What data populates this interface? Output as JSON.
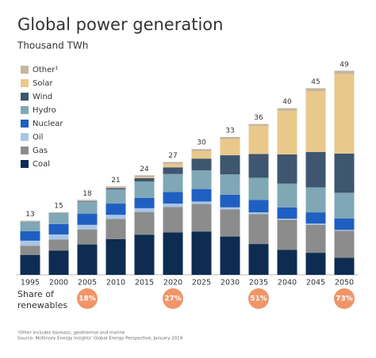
{
  "chart_data": {
    "type": "stacked-bar",
    "title": "Global power generation",
    "subtitle": "Thousand TWh",
    "categories": [
      "1995",
      "2000",
      "2005",
      "2010",
      "2015",
      "2020",
      "2025",
      "2030",
      "2035",
      "2040",
      "2045",
      "2050"
    ],
    "series": [
      {
        "name": "Coal",
        "color": "#0e2c52",
        "values": [
          4.8,
          5.8,
          7.3,
          8.6,
          9.6,
          10.2,
          10.4,
          9.2,
          7.4,
          6.0,
          5.3,
          4.1
        ]
      },
      {
        "name": "Gas",
        "color": "#8c8c8c",
        "values": [
          2.2,
          2.7,
          3.6,
          4.8,
          5.5,
          6.1,
          6.6,
          6.5,
          7.2,
          7.2,
          6.7,
          6.5
        ]
      },
      {
        "name": "Oil",
        "color": "#a9c6e8",
        "values": [
          1.2,
          1.2,
          1.1,
          1.0,
          0.9,
          0.8,
          0.6,
          0.5,
          0.4,
          0.3,
          0.3,
          0.2
        ]
      },
      {
        "name": "Nuclear",
        "color": "#1f5fc1",
        "values": [
          2.3,
          2.5,
          2.7,
          2.7,
          2.5,
          2.8,
          3.0,
          3.0,
          3.0,
          2.7,
          2.7,
          2.7
        ]
      },
      {
        "name": "Hydro",
        "color": "#80a7b6",
        "values": [
          2.3,
          2.6,
          2.9,
          3.4,
          3.9,
          4.3,
          4.5,
          4.9,
          5.3,
          5.7,
          6.0,
          6.2
        ]
      },
      {
        "name": "Wind",
        "color": "#3e566f",
        "values": [
          0,
          0.03,
          0.1,
          0.3,
          0.8,
          1.6,
          2.8,
          4.6,
          5.7,
          7.0,
          8.5,
          9.4
        ]
      },
      {
        "name": "Solar",
        "color": "#e9c98b",
        "values": [
          0,
          0,
          0,
          0.03,
          0.2,
          0.8,
          1.8,
          3.9,
          6.7,
          10.5,
          14.6,
          19.1
        ]
      },
      {
        "name": "Other¹",
        "color": "#c5b5a1",
        "values": [
          0.2,
          0.2,
          0.3,
          0.4,
          0.5,
          0.5,
          0.5,
          0.5,
          0.5,
          0.6,
          0.7,
          0.8
        ]
      }
    ],
    "totals": [
      13,
      15,
      18,
      21,
      24,
      27,
      30,
      33,
      36,
      40,
      45,
      49
    ],
    "ylim": [
      0,
      50
    ],
    "share_label": "Share of renewables",
    "share_values": [
      null,
      null,
      18,
      null,
      null,
      27,
      null,
      null,
      51,
      null,
      null,
      73
    ],
    "share_labels": [
      null,
      null,
      "18%",
      null,
      null,
      "27%",
      null,
      null,
      "51%",
      null,
      null,
      "73%"
    ],
    "share_color": "#f0956a",
    "footnotes": [
      "¹Other includes biomass, geothermal and marine",
      "Source: McKinsey Energy Insights' Global Energy Perspective, January 2019"
    ]
  }
}
